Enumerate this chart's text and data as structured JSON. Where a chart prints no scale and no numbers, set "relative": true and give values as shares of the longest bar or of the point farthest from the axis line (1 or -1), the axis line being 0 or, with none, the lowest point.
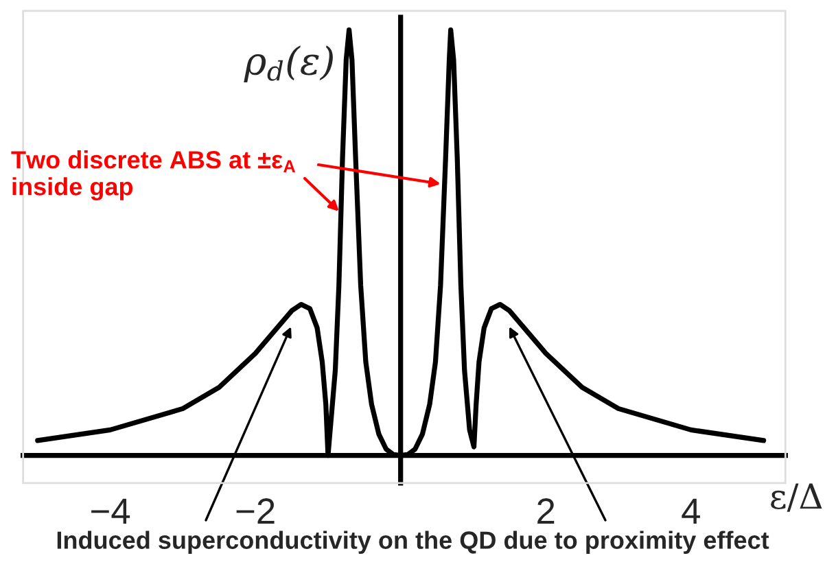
{
  "chart_data": {
    "type": "line",
    "relative": true,
    "ylabel": "ρ$_{d}$(ε)",
    "xlabel": "ε/Δ",
    "xlim": [
      -5.2,
      5.3
    ],
    "xticks": [
      {
        "value": -4,
        "label": "−4"
      },
      {
        "value": -2,
        "label": "−2"
      },
      2,
      4
    ],
    "x": [
      -5,
      -4,
      -3,
      -2.5,
      -2,
      -1.7,
      -1.5,
      -1.37,
      -1.25,
      -1.15,
      -1.08,
      -1.03,
      -1.0,
      -0.97,
      -0.9,
      -0.85,
      -0.8,
      -0.75,
      -0.71,
      -0.67,
      -0.62,
      -0.55,
      -0.48,
      -0.4,
      -0.3,
      -0.2,
      -0.1,
      0,
      0.1,
      0.2,
      0.3,
      0.4,
      0.48,
      0.55,
      0.62,
      0.67,
      0.69,
      0.73,
      0.78,
      0.83,
      0.88,
      0.95,
      0.98,
      1.01,
      1.04,
      1.08,
      1.15,
      1.25,
      1.37,
      1.5,
      1.7,
      2,
      2.5,
      3,
      4,
      5
    ],
    "series": [
      {
        "color": "#000000",
        "values": [
          0.035,
          0.06,
          0.11,
          0.16,
          0.24,
          0.3,
          0.34,
          0.355,
          0.345,
          0.3,
          0.22,
          0.12,
          0.0,
          0.06,
          0.2,
          0.4,
          0.7,
          0.93,
          1.0,
          0.93,
          0.7,
          0.4,
          0.22,
          0.12,
          0.05,
          0.015,
          0.002,
          0,
          0.002,
          0.015,
          0.05,
          0.12,
          0.22,
          0.4,
          0.7,
          0.93,
          1.0,
          0.93,
          0.7,
          0.4,
          0.2,
          0.06,
          0.04,
          0.02,
          0.12,
          0.22,
          0.3,
          0.345,
          0.355,
          0.34,
          0.3,
          0.24,
          0.16,
          0.11,
          0.06,
          0.035
        ]
      }
    ],
    "grid": false,
    "legend": false,
    "marker": "none",
    "line_style": "solid",
    "annotations": [
      "Two discrete ABS at ±ε$_{A}$\ninside gap",
      "Induced superconductivity on the QD due to proximity effect"
    ]
  }
}
